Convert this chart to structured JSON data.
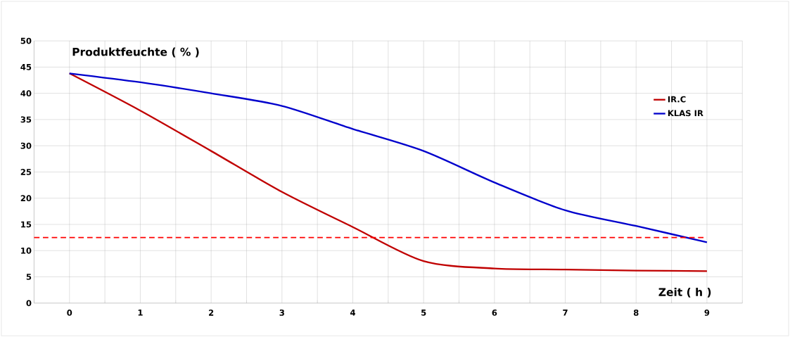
{
  "chart_data": {
    "type": "line",
    "xlabel": "Zeit  ( h )",
    "ylabel": "Produktfeuchte  ( % )",
    "x": [
      0,
      1,
      2,
      3,
      4,
      5,
      6,
      7,
      8,
      9
    ],
    "series": [
      {
        "name": "IR.C",
        "color": "#c00000",
        "values": [
          43.8,
          36.7,
          29,
          21.2,
          14.5,
          8,
          6.6,
          6.4,
          6.2,
          6.1
        ]
      },
      {
        "name": "KLAS IR",
        "color": "#0000cc",
        "values": [
          43.8,
          42.1,
          40,
          37.6,
          33.2,
          29,
          23,
          17.7,
          14.7,
          11.6
        ]
      }
    ],
    "xlim": [
      -0.5,
      9.5
    ],
    "xticks": [
      0,
      1,
      2,
      3,
      4,
      5,
      6,
      7,
      8,
      9
    ],
    "ylim": [
      0,
      50
    ],
    "yticks": [
      0,
      5,
      10,
      15,
      20,
      25,
      30,
      35,
      40,
      45,
      50
    ],
    "ref_lines": [
      {
        "axis": "y",
        "value": 12.5,
        "color": "#ff0000",
        "line_style": "dashed"
      }
    ],
    "grid": true,
    "legend": "top right",
    "marker": "none",
    "line_style": "solid"
  }
}
